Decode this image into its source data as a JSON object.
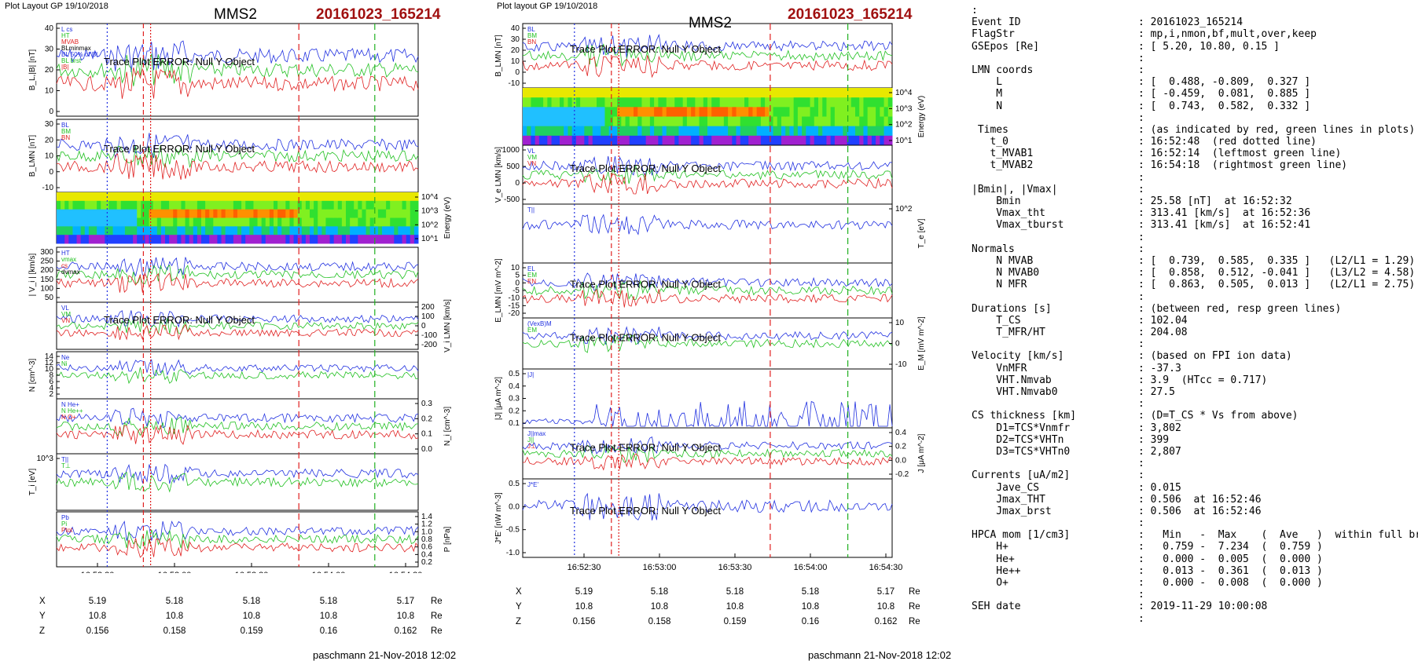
{
  "left": {
    "header_left": "Plot Layout GP 19/10/2018",
    "title": "MMS2",
    "event": "20161023_165214",
    "footer": "paschmann 21-Nov-2018 12:02",
    "err": "Trace Plot ERROR: Null Y Object",
    "panels": [
      {
        "ylabel": "B_L,|B| [nT]",
        "ticks": [
          "40",
          "30",
          "20",
          "10",
          "0"
        ],
        "legend": [
          "L cs",
          "HT",
          "MVAB",
          "BLminmax",
          "BL 50% of BL",
          "BL brst",
          "|B|"
        ]
      },
      {
        "ylabel": "B_LMN [nT]",
        "ticks": [
          "30",
          "20",
          "10",
          "0",
          "-10"
        ],
        "legend": [
          "BL",
          "BM",
          "BN"
        ]
      },
      {
        "ylabel": "Energy (eV)",
        "ticks": [
          "10^4",
          "10^3",
          "10^2",
          "10^1"
        ]
      },
      {
        "ylabel": "| V_i | [km/s]",
        "ticks": [
          "300",
          "250",
          "200",
          "150",
          "100",
          "50"
        ],
        "legend": [
          "HT",
          "vmax",
          "cs",
          "dvmax"
        ]
      },
      {
        "ylabel": "V_i LMN [km/s]",
        "ticks": [
          "200",
          "100",
          "0",
          "-100",
          "-200"
        ],
        "legend": [
          "VL",
          "VM",
          "VN"
        ]
      },
      {
        "ylabel": "N [cm^-3]",
        "ticks": [
          "14",
          "12",
          "10",
          "8",
          "6",
          "4",
          "2"
        ],
        "legend": [
          "Ne",
          "Ni"
        ]
      },
      {
        "ylabel": "N_i [cm^-3]",
        "ticks": [
          "0.3",
          "0.2",
          "0.1",
          "0.0"
        ],
        "legend": [
          "N He+",
          "N He++",
          "N O+"
        ]
      },
      {
        "ylabel": "T_i [eV]",
        "ticks": [
          "10^3"
        ],
        "legend": [
          "T||",
          "T⊥"
        ]
      },
      {
        "ylabel": "P [nPa]",
        "ticks": [
          "1.4",
          "1.2",
          "1.0",
          "0.8",
          "0.6",
          "0.4",
          "0.2"
        ],
        "legend": [
          "Pb",
          "Pi",
          "Ptot"
        ]
      }
    ]
  },
  "right": {
    "header_left": "Plot layout GP 19/10/2018",
    "title": "MMS2",
    "event": "20161023_165214",
    "footer": "paschmann 21-Nov-2018 12:02",
    "err": "Trace Plot ERROR: Null Y Object",
    "panels": [
      {
        "ylabel": "B_LMN [nT]",
        "ticks": [
          "40",
          "30",
          "20",
          "10",
          "0",
          "-10"
        ],
        "legend": [
          "BL",
          "BM",
          "BN"
        ]
      },
      {
        "ylabel": "Energy (eV)",
        "ticks": [
          "10^4",
          "10^3",
          "10^2",
          "10^1"
        ]
      },
      {
        "ylabel": "V_e LMN [km/s]",
        "ticks": [
          "1000",
          "500",
          "0",
          "-500"
        ],
        "legend": [
          "VL",
          "VM",
          "VN"
        ]
      },
      {
        "ylabel": "T_e [eV]",
        "ticks": [
          "10^2"
        ],
        "legend": [
          "T||"
        ]
      },
      {
        "ylabel": "E_LMN [mV m^-2]",
        "ticks": [
          "10",
          "5",
          "0",
          "-5",
          "-10",
          "-15",
          "-20"
        ],
        "legend": [
          "EL",
          "EM",
          "EN"
        ]
      },
      {
        "ylabel": "E_M [mV m^-2]",
        "ticks": [
          "10",
          "0",
          "-10"
        ],
        "legend": [
          "(VexB)M",
          "EM"
        ]
      },
      {
        "ylabel": "|J| [μA m^-2]",
        "ticks": [
          "0.5",
          "0.4",
          "0.3",
          "0.2",
          "0.1"
        ],
        "legend": [
          "|J|"
        ]
      },
      {
        "ylabel": "J [μA m^-2]",
        "ticks": [
          "0.4",
          "0.2",
          "0.0",
          "-0.2"
        ],
        "legend": [
          "J||max",
          "J||",
          "J⊥"
        ]
      },
      {
        "ylabel": "J*E' [nW m^-3]",
        "ticks": [
          "0.5",
          "0.0",
          "-0.5",
          "-1.0"
        ],
        "legend": [
          "J*E'"
        ]
      }
    ]
  },
  "time_ticks": [
    "16:52:30",
    "16:53:00",
    "16:53:30",
    "16:54:00",
    "16:54:30"
  ],
  "position_rows": [
    {
      "label": "X",
      "values": [
        "5.19",
        "5.18",
        "5.18",
        "5.18",
        "5.17"
      ],
      "unit": "Re"
    },
    {
      "label": "Y",
      "values": [
        "10.8",
        "10.8",
        "10.8",
        "10.8",
        "10.8"
      ],
      "unit": "Re"
    },
    {
      "label": "Z",
      "values": [
        "0.156",
        "0.158",
        "0.159",
        "0.16",
        "0.162"
      ],
      "unit": "Re"
    }
  ],
  "info_lines": [
    [
      ":",
      ""
    ],
    [
      "Event ID",
      ": 20161023_165214"
    ],
    [
      "FlagStr",
      ": mp,i,nmon,bf,mult,over,keep"
    ],
    [
      "GSEpos [Re]",
      ": [ 5.20, 10.80, 0.15 ]"
    ],
    [
      "",
      ":"
    ],
    [
      "LMN coords",
      ":"
    ],
    [
      "    L",
      ": [  0.488, -0.809,  0.327 ]"
    ],
    [
      "    M",
      ": [ -0.459,  0.081,  0.885 ]"
    ],
    [
      "    N",
      ": [  0.743,  0.582,  0.332 ]"
    ],
    [
      "",
      ":"
    ],
    [
      " Times",
      ": (as indicated by red, green lines in plots)"
    ],
    [
      "   t_0",
      ": 16:52:48  (red dotted line)"
    ],
    [
      "   t_MVAB1",
      ": 16:52:14  (leftmost green line)"
    ],
    [
      "   t_MVAB2",
      ": 16:54:18  (rightmost green line)"
    ],
    [
      "",
      ":"
    ],
    [
      "|Bmin|, |Vmax|",
      ":"
    ],
    [
      "    Bmin",
      ": 25.58 [nT]  at 16:52:32"
    ],
    [
      "    Vmax_tht",
      ": 313.41 [km/s]  at 16:52:36"
    ],
    [
      "    Vmax_tburst",
      ": 313.41 [km/s]  at 16:52:41"
    ],
    [
      "",
      ":"
    ],
    [
      "Normals",
      ":"
    ],
    [
      "    N MVAB",
      ": [  0.739,  0.585,  0.335 ]   (L2/L1 = 1.29)"
    ],
    [
      "    N MVAB0",
      ": [  0.858,  0.512, -0.041 ]   (L3/L2 = 4.58)"
    ],
    [
      "    N MFR",
      ": [  0.863,  0.505,  0.013 ]   (L2/L1 = 2.75)"
    ],
    [
      "",
      ":"
    ],
    [
      "Durations [s]",
      ": (between red, resp green lines)"
    ],
    [
      "    T_CS",
      ": 102.04"
    ],
    [
      "    T_MFR/HT",
      ": 204.08"
    ],
    [
      "",
      ":"
    ],
    [
      "Velocity [km/s]",
      ": (based on FPI ion data)"
    ],
    [
      "    VnMFR",
      ": -37.3"
    ],
    [
      "    VHT.Nmvab",
      ": 3.9  (HTcc = 0.717)"
    ],
    [
      "    VHT.Nmvab0",
      ": 27.5"
    ],
    [
      "",
      ":"
    ],
    [
      "CS thickness [km]",
      ": (D=T_CS * Vs from above)"
    ],
    [
      "    D1=TCS*Vnmfr",
      ": 3,802"
    ],
    [
      "    D2=TCS*VHTn",
      ": 399"
    ],
    [
      "    D3=TCS*VHTn0",
      ": 2,807"
    ],
    [
      "",
      ":"
    ],
    [
      "Currents [uA/m2]",
      ":"
    ],
    [
      "    Jave_CS",
      ": 0.015"
    ],
    [
      "    Jmax_THT",
      ": 0.506  at 16:52:46"
    ],
    [
      "    Jmax_brst",
      ": 0.506  at 16:52:46"
    ],
    [
      "",
      ":"
    ],
    [
      "HPCA mom [1/cm3]",
      ":   Min   -  Max    (  Ave   )  within full brst int"
    ],
    [
      "    H+",
      ":   0.759 -  7.234  (  0.759 )"
    ],
    [
      "    He+",
      ":   0.000 -  0.005  (  0.000 )"
    ],
    [
      "    He++",
      ":   0.013 -  0.361  (  0.013 )"
    ],
    [
      "    O+",
      ":   0.000 -  0.008  (  0.000 )"
    ],
    [
      "",
      ":"
    ],
    [
      "SEH date",
      ": 2019-11-29 10:00:08"
    ],
    [
      "",
      ":"
    ]
  ],
  "chart_data": [
    {
      "type": "line",
      "title": "MMS2 20161023_165214",
      "xlabel": "",
      "x_ticks": [
        "16:52:30",
        "16:53:00",
        "16:53:30",
        "16:54:00",
        "16:54:30"
      ],
      "panels": [
        {
          "name": "B_L,|B|",
          "ylim": [
            -8,
            42
          ],
          "series": [
            {
              "name": "BL brst",
              "x": [
                "16:52:20",
                "16:52:30",
                "16:52:36",
                "16:52:45",
                "16:52:55",
                "16:53:10",
                "16:53:20",
                "16:53:35",
                "16:53:45",
                "16:53:55",
                "16:54:05",
                "16:54:15",
                "16:54:30"
              ],
              "values": [
                0,
                8,
                25,
                14,
                -2,
                12,
                20,
                18,
                -4,
                2,
                6,
                2,
                0
              ]
            },
            {
              "name": "|B|",
              "x": [
                "16:52:20",
                "16:52:35",
                "16:52:45",
                "16:53:00",
                "16:53:30",
                "16:53:45",
                "16:54:00",
                "16:54:30"
              ],
              "values": [
                40,
                40,
                38,
                35,
                36,
                37,
                36,
                36
              ]
            }
          ]
        },
        {
          "name": "N_i",
          "ylim": [
            0,
            0.35
          ],
          "series": [
            {
              "name": "N He++",
              "x": [
                "16:52:25",
                "16:52:35",
                "16:52:45",
                "16:52:55",
                "16:53:05",
                "16:53:15",
                "16:53:25",
                "16:53:35",
                "16:53:45",
                "16:53:55",
                "16:54:05",
                "16:54:15"
              ],
              "values": [
                0.03,
                0.12,
                0.34,
                0.16,
                0.1,
                0.08,
                0.08,
                0.08,
                0.12,
                0.1,
                0.1,
                0.05
              ]
            }
          ]
        }
      ]
    }
  ]
}
